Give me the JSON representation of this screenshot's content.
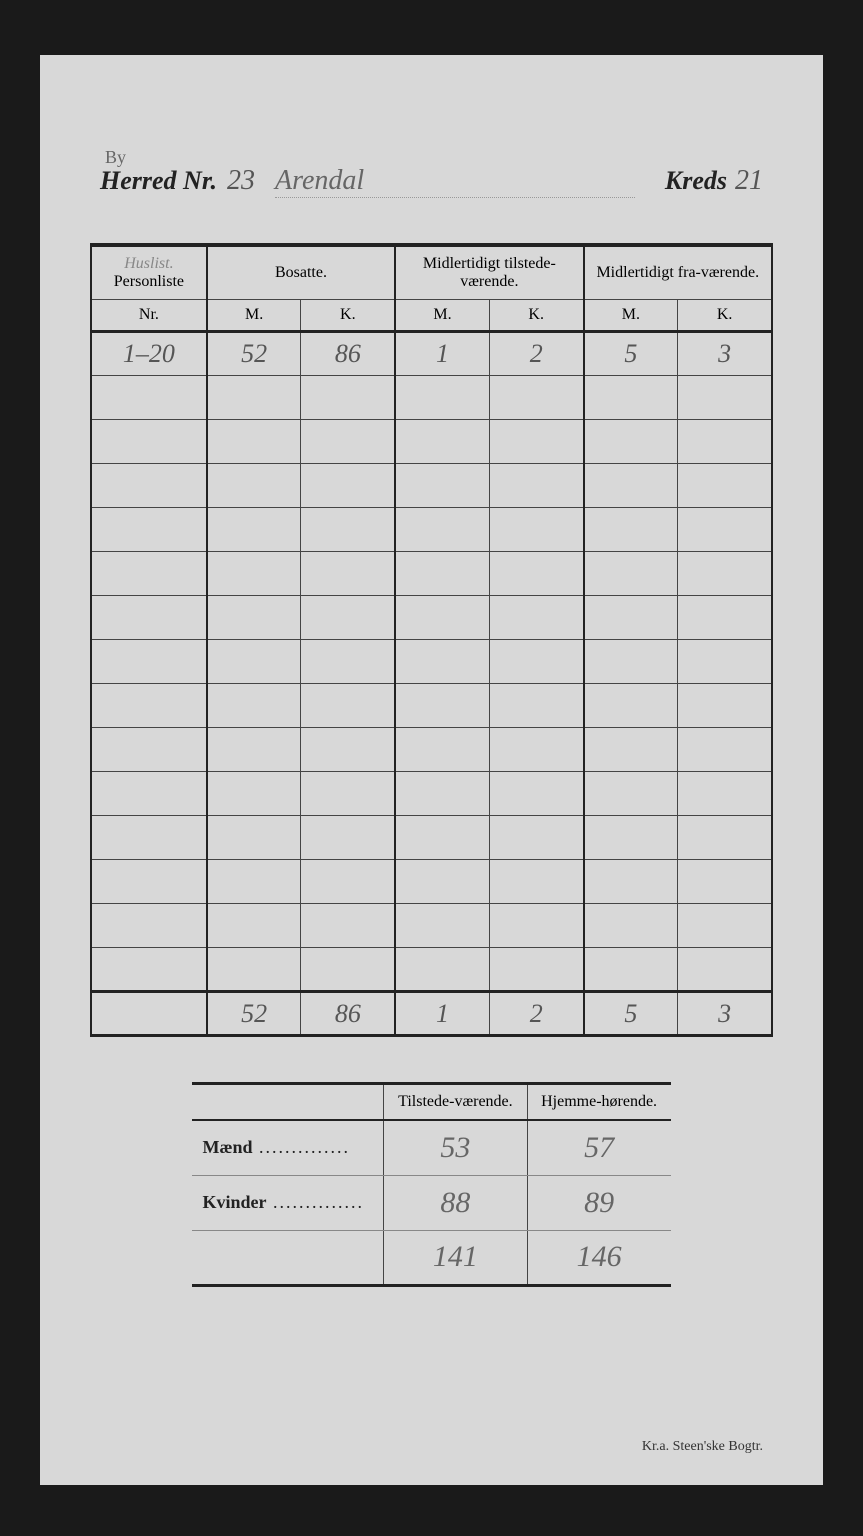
{
  "header": {
    "herred_annotation": "By",
    "herred_label": "Herred",
    "nr_label": "Nr.",
    "herred_nr": "23",
    "herred_name": "Arendal",
    "kreds_label": "Kreds",
    "kreds_nr": "21"
  },
  "main_table": {
    "columns": {
      "personliste_annotation": "Huslist.",
      "personliste": "Personliste",
      "nr": "Nr.",
      "bosatte": "Bosatte.",
      "tilstede": "Midlertidigt tilstede-værende.",
      "fravaerende": "Midlertidigt fra-værende.",
      "m": "M.",
      "k": "K."
    },
    "rows": [
      {
        "nr": "1–20",
        "bm": "52",
        "bk": "86",
        "tm": "1",
        "tk": "2",
        "fm": "5",
        "fk": "3"
      },
      {
        "nr": "",
        "bm": "",
        "bk": "",
        "tm": "",
        "tk": "",
        "fm": "",
        "fk": ""
      },
      {
        "nr": "",
        "bm": "",
        "bk": "",
        "tm": "",
        "tk": "",
        "fm": "",
        "fk": ""
      },
      {
        "nr": "",
        "bm": "",
        "bk": "",
        "tm": "",
        "tk": "",
        "fm": "",
        "fk": ""
      },
      {
        "nr": "",
        "bm": "",
        "bk": "",
        "tm": "",
        "tk": "",
        "fm": "",
        "fk": ""
      },
      {
        "nr": "",
        "bm": "",
        "bk": "",
        "tm": "",
        "tk": "",
        "fm": "",
        "fk": ""
      },
      {
        "nr": "",
        "bm": "",
        "bk": "",
        "tm": "",
        "tk": "",
        "fm": "",
        "fk": ""
      },
      {
        "nr": "",
        "bm": "",
        "bk": "",
        "tm": "",
        "tk": "",
        "fm": "",
        "fk": ""
      },
      {
        "nr": "",
        "bm": "",
        "bk": "",
        "tm": "",
        "tk": "",
        "fm": "",
        "fk": ""
      },
      {
        "nr": "",
        "bm": "",
        "bk": "",
        "tm": "",
        "tk": "",
        "fm": "",
        "fk": ""
      },
      {
        "nr": "",
        "bm": "",
        "bk": "",
        "tm": "",
        "tk": "",
        "fm": "",
        "fk": ""
      },
      {
        "nr": "",
        "bm": "",
        "bk": "",
        "tm": "",
        "tk": "",
        "fm": "",
        "fk": ""
      },
      {
        "nr": "",
        "bm": "",
        "bk": "",
        "tm": "",
        "tk": "",
        "fm": "",
        "fk": ""
      },
      {
        "nr": "",
        "bm": "",
        "bk": "",
        "tm": "",
        "tk": "",
        "fm": "",
        "fk": ""
      },
      {
        "nr": "",
        "bm": "",
        "bk": "",
        "tm": "",
        "tk": "",
        "fm": "",
        "fk": ""
      }
    ],
    "totals": {
      "nr": "",
      "bm": "52",
      "bk": "86",
      "tm": "1",
      "tk": "2",
      "fm": "5",
      "fk": "3"
    }
  },
  "summary_table": {
    "columns": {
      "tilstede": "Tilstede-værende.",
      "hjemme": "Hjemme-hørende."
    },
    "rows": [
      {
        "label": "Mænd",
        "tilstede": "53",
        "hjemme": "57"
      },
      {
        "label": "Kvinder",
        "tilstede": "88",
        "hjemme": "89"
      }
    ],
    "totals": {
      "tilstede": "141",
      "hjemme": "146"
    }
  },
  "footer": "Kr.a.  Steen'ske Bogtr."
}
